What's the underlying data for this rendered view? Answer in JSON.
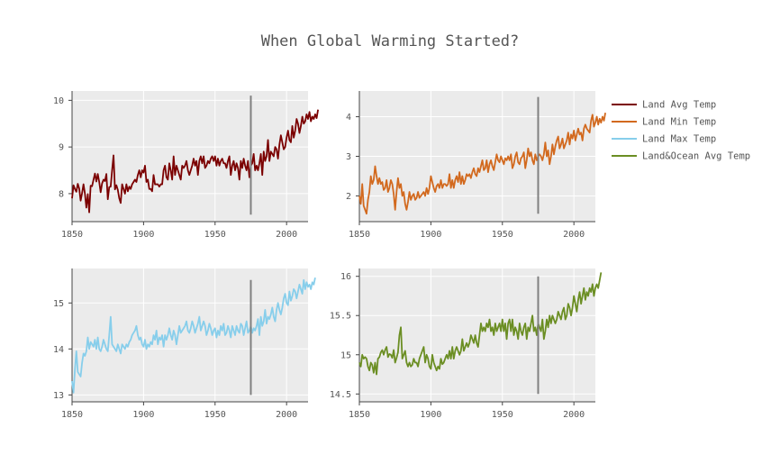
{
  "title": "When Global Warming Started?",
  "colors": {
    "land_avg": "#7b0000",
    "land_min": "#d2691e",
    "land_max": "#87ceeb",
    "land_ocean": "#6b8e23",
    "marker": "#808080",
    "panel_bg": "#ebebeb",
    "grid": "#ffffff"
  },
  "legend": [
    {
      "name": "Land Avg Temp",
      "color": "#7b0000"
    },
    {
      "name": "Land Min Temp",
      "color": "#d2691e"
    },
    {
      "name": "Land Max Temp",
      "color": "#87ceeb"
    },
    {
      "name": "Land&Ocean Avg Temp",
      "color": "#6b8e23"
    }
  ],
  "chart_data": [
    {
      "type": "line",
      "series_name": "Land Avg Temp",
      "xlim": [
        1850,
        2015
      ],
      "ylim": [
        7.4,
        10.2
      ],
      "xticks": [
        1850,
        1900,
        1950,
        2000
      ],
      "yticks": [
        8,
        9,
        10
      ],
      "ytick_labels": [
        "8",
        "9",
        "10"
      ],
      "marker_year": 1975,
      "marker_range": [
        7.55,
        10.1
      ],
      "x_start": 1850,
      "values": [
        7.9,
        8.18,
        8.1,
        8.04,
        8.21,
        8.11,
        7.85,
        8.01,
        8.2,
        8.0,
        7.7,
        7.99,
        7.6,
        8.17,
        8.16,
        8.3,
        8.43,
        8.26,
        8.42,
        8.25,
        8.03,
        8.22,
        8.3,
        8.27,
        8.42,
        7.88,
        8.14,
        8.15,
        8.5,
        8.82,
        8.09,
        8.18,
        8.08,
        7.9,
        7.8,
        8.2,
        8.1,
        8.0,
        8.2,
        8.05,
        8.15,
        8.1,
        8.2,
        8.25,
        8.3,
        8.25,
        8.4,
        8.5,
        8.35,
        8.5,
        8.45,
        8.6,
        8.25,
        8.3,
        8.1,
        8.1,
        8.05,
        8.4,
        8.2,
        8.2,
        8.2,
        8.15,
        8.2,
        8.2,
        8.5,
        8.6,
        8.35,
        8.3,
        8.65,
        8.5,
        8.3,
        8.8,
        8.4,
        8.6,
        8.5,
        8.4,
        8.3,
        8.6,
        8.55,
        8.6,
        8.7,
        8.5,
        8.4,
        8.5,
        8.6,
        8.75,
        8.6,
        8.7,
        8.4,
        8.7,
        8.8,
        8.65,
        8.8,
        8.55,
        8.6,
        8.7,
        8.65,
        8.75,
        8.8,
        8.7,
        8.8,
        8.6,
        8.75,
        8.6,
        8.7,
        8.75,
        8.65,
        8.65,
        8.55,
        8.7,
        8.8,
        8.4,
        8.6,
        8.7,
        8.5,
        8.65,
        8.55,
        8.3,
        8.7,
        8.55,
        8.75,
        8.6,
        8.5,
        8.7,
        8.35,
        8.6,
        8.65,
        8.85,
        8.5,
        8.6,
        8.5,
        8.65,
        8.85,
        8.4,
        8.9,
        8.7,
        8.8,
        9.15,
        8.7,
        8.9,
        8.85,
        8.8,
        9.0,
        8.95,
        8.75,
        9.05,
        9.25,
        9.1,
        8.95,
        9.0,
        9.2,
        9.35,
        9.15,
        9.1,
        9.45,
        9.2,
        9.35,
        9.6,
        9.5,
        9.3,
        9.45,
        9.65,
        9.5,
        9.55,
        9.7,
        9.6,
        9.75,
        9.55,
        9.65,
        9.6,
        9.7,
        9.62,
        9.8
      ]
    },
    {
      "type": "line",
      "series_name": "Land Min Temp",
      "xlim": [
        1850,
        2015
      ],
      "ylim": [
        1.35,
        4.65
      ],
      "xticks": [
        1850,
        1900,
        1950,
        2000
      ],
      "yticks": [
        2,
        3,
        4
      ],
      "ytick_labels": [
        "2",
        "3",
        "4"
      ],
      "marker_year": 1975,
      "marker_range": [
        1.55,
        4.5
      ],
      "x_start": 1850,
      "values": [
        2.0,
        1.8,
        2.3,
        1.75,
        1.65,
        1.55,
        1.9,
        2.1,
        2.5,
        2.3,
        2.4,
        2.75,
        2.5,
        2.3,
        2.45,
        2.3,
        2.35,
        2.15,
        2.2,
        2.4,
        2.1,
        2.2,
        2.4,
        2.3,
        2.05,
        1.65,
        2.1,
        2.45,
        2.2,
        2.3,
        2.0,
        2.1,
        1.8,
        1.65,
        1.85,
        2.1,
        1.9,
        2.0,
        2.05,
        1.9,
        1.95,
        2.1,
        1.95,
        2.0,
        2.05,
        2.1,
        2.0,
        2.2,
        2.05,
        2.2,
        2.5,
        2.35,
        2.2,
        2.1,
        2.25,
        2.3,
        2.2,
        2.4,
        2.2,
        2.3,
        2.3,
        2.25,
        2.3,
        2.55,
        2.2,
        2.4,
        2.2,
        2.4,
        2.5,
        2.35,
        2.6,
        2.3,
        2.5,
        2.3,
        2.4,
        2.55,
        2.5,
        2.55,
        2.45,
        2.6,
        2.7,
        2.55,
        2.5,
        2.7,
        2.6,
        2.75,
        2.9,
        2.65,
        2.7,
        2.9,
        2.6,
        2.8,
        2.9,
        2.75,
        2.65,
        2.85,
        3.05,
        2.9,
        2.85,
        3.0,
        2.9,
        2.8,
        2.95,
        2.9,
        3.0,
        2.9,
        3.05,
        2.7,
        2.8,
        3.0,
        3.1,
        2.85,
        2.8,
        2.95,
        3.0,
        3.1,
        2.7,
        2.9,
        3.2,
        3.0,
        3.1,
        2.9,
        2.8,
        3.05,
        2.9,
        3.0,
        3.05,
        3.0,
        2.9,
        3.05,
        3.35,
        3.0,
        3.15,
        2.8,
        3.0,
        3.3,
        3.05,
        3.25,
        3.4,
        3.5,
        3.2,
        3.3,
        3.45,
        3.2,
        3.3,
        3.4,
        3.6,
        3.3,
        3.55,
        3.45,
        3.65,
        3.4,
        3.55,
        3.7,
        3.55,
        3.6,
        3.4,
        3.7,
        3.8,
        3.7,
        3.65,
        3.6,
        3.9,
        4.05,
        3.75,
        3.85,
        4.0,
        3.8,
        3.95,
        3.85,
        4.0,
        3.9,
        4.1
      ]
    },
    {
      "type": "line",
      "series_name": "Land Max Temp",
      "xlim": [
        1850,
        2015
      ],
      "ylim": [
        12.85,
        15.75
      ],
      "xticks": [
        1850,
        1900,
        1950,
        2000
      ],
      "yticks": [
        13,
        14,
        15
      ],
      "ytick_labels": [
        "13",
        "14",
        "15"
      ],
      "marker_year": 1975,
      "marker_range": [
        13.0,
        15.5
      ],
      "x_start": 1850,
      "values": [
        13.3,
        13.05,
        13.55,
        13.95,
        13.5,
        13.45,
        13.4,
        13.7,
        13.9,
        13.85,
        13.95,
        14.25,
        14.0,
        14.15,
        14.1,
        14.05,
        14.2,
        14.0,
        14.25,
        14.0,
        13.95,
        14.05,
        14.2,
        14.1,
        14.0,
        13.95,
        14.3,
        14.7,
        14.1,
        14.05,
        14.0,
        13.95,
        14.1,
        14.0,
        13.9,
        14.1,
        14.05,
        14.0,
        14.1,
        14.05,
        14.15,
        14.2,
        14.3,
        14.35,
        14.4,
        14.5,
        14.3,
        14.2,
        14.25,
        14.1,
        14.05,
        14.2,
        14.0,
        14.1,
        14.05,
        14.15,
        14.1,
        14.3,
        14.2,
        14.4,
        14.1,
        14.25,
        14.2,
        14.3,
        14.05,
        14.3,
        14.2,
        14.3,
        14.45,
        14.3,
        14.2,
        14.4,
        14.3,
        14.1,
        14.3,
        14.5,
        14.35,
        14.4,
        14.45,
        14.5,
        14.6,
        14.4,
        14.35,
        14.45,
        14.6,
        14.5,
        14.35,
        14.45,
        14.55,
        14.7,
        14.4,
        14.5,
        14.6,
        14.5,
        14.3,
        14.4,
        14.55,
        14.45,
        14.3,
        14.4,
        14.45,
        14.25,
        14.4,
        14.3,
        14.5,
        14.4,
        14.55,
        14.3,
        14.35,
        14.5,
        14.4,
        14.25,
        14.5,
        14.4,
        14.3,
        14.5,
        14.4,
        14.35,
        14.55,
        14.5,
        14.3,
        14.45,
        14.6,
        14.35,
        14.4,
        14.5,
        14.35,
        14.45,
        14.4,
        14.5,
        14.65,
        14.3,
        14.7,
        14.5,
        14.6,
        14.85,
        14.55,
        14.7,
        14.65,
        14.75,
        14.9,
        14.7,
        14.6,
        14.85,
        15.0,
        14.85,
        14.75,
        14.9,
        15.1,
        15.2,
        15.0,
        14.95,
        15.25,
        15.05,
        15.15,
        15.3,
        15.25,
        15.1,
        15.25,
        15.4,
        15.3,
        15.2,
        15.5,
        15.3,
        15.45,
        15.35,
        15.4,
        15.3,
        15.45,
        15.4,
        15.55
      ]
    },
    {
      "type": "line",
      "series_name": "Land&Ocean Avg Temp",
      "xlim": [
        1850,
        2015
      ],
      "ylim": [
        14.4,
        16.1
      ],
      "xticks": [
        1850,
        1900,
        1950,
        2000
      ],
      "yticks": [
        14.5,
        15,
        15.5,
        16
      ],
      "ytick_labels": [
        "14.5",
        "15",
        "15.5",
        "16"
      ],
      "marker_year": 1975,
      "marker_range": [
        14.5,
        16.0
      ],
      "x_start": 1850,
      "values": [
        14.9,
        14.85,
        15.0,
        14.95,
        14.97,
        14.95,
        14.85,
        14.8,
        14.9,
        14.87,
        14.77,
        14.9,
        14.75,
        14.95,
        14.97,
        15.03,
        15.06,
        15.0,
        15.06,
        15.1,
        14.97,
        15.01,
        15.0,
        14.96,
        15.06,
        14.9,
        14.96,
        15.03,
        15.25,
        15.35,
        14.95,
        15.0,
        15.05,
        14.9,
        14.85,
        14.9,
        14.85,
        14.87,
        14.95,
        14.9,
        14.9,
        14.85,
        14.95,
        15.0,
        15.05,
        15.1,
        14.9,
        15.0,
        14.95,
        14.85,
        14.82,
        15.0,
        14.9,
        14.85,
        14.8,
        14.85,
        14.82,
        14.95,
        14.88,
        14.9,
        14.95,
        15.0,
        14.95,
        15.05,
        14.95,
        15.1,
        14.95,
        15.05,
        15.1,
        15.05,
        15.0,
        15.05,
        15.2,
        15.05,
        15.1,
        15.15,
        15.1,
        15.15,
        15.25,
        15.2,
        15.15,
        15.25,
        15.15,
        15.1,
        15.25,
        15.4,
        15.3,
        15.35,
        15.3,
        15.4,
        15.35,
        15.45,
        15.3,
        15.35,
        15.25,
        15.4,
        15.3,
        15.35,
        15.4,
        15.3,
        15.45,
        15.3,
        15.4,
        15.2,
        15.4,
        15.45,
        15.3,
        15.45,
        15.25,
        15.35,
        15.3,
        15.2,
        15.4,
        15.3,
        15.25,
        15.35,
        15.4,
        15.2,
        15.35,
        15.3,
        15.4,
        15.5,
        15.3,
        15.35,
        15.25,
        15.4,
        15.35,
        15.3,
        15.45,
        15.2,
        15.3,
        15.45,
        15.35,
        15.5,
        15.4,
        15.5,
        15.45,
        15.4,
        15.45,
        15.55,
        15.5,
        15.45,
        15.55,
        15.6,
        15.45,
        15.5,
        15.65,
        15.6,
        15.5,
        15.6,
        15.75,
        15.65,
        15.55,
        15.7,
        15.8,
        15.65,
        15.75,
        15.85,
        15.7,
        15.8,
        15.75,
        15.85,
        15.8,
        15.9,
        15.75,
        15.85,
        15.9,
        15.85,
        15.95,
        16.05
      ]
    }
  ]
}
